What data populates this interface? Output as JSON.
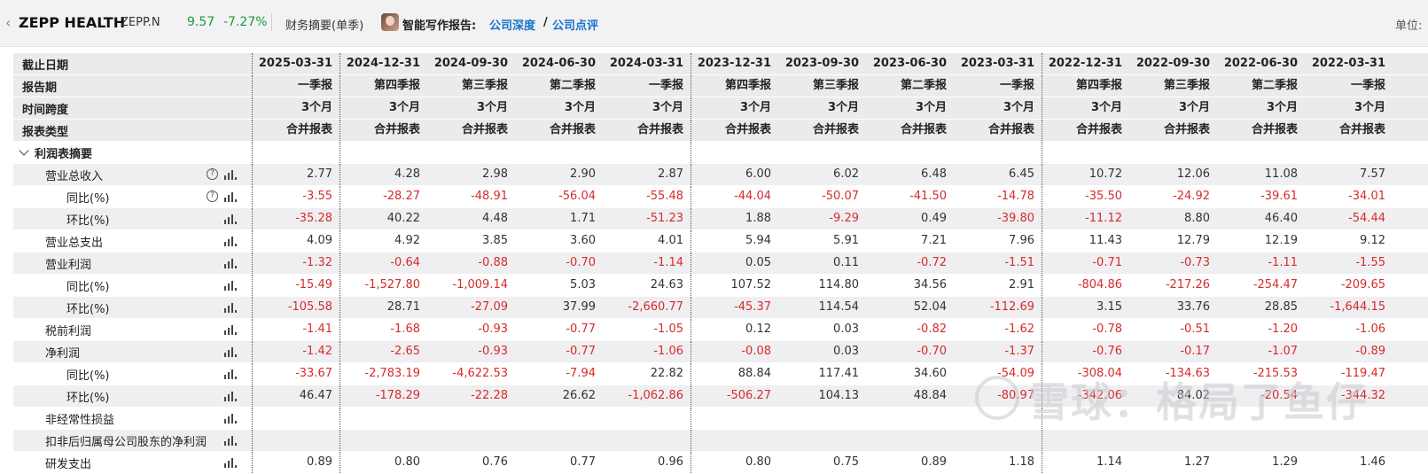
{
  "header": {
    "back_glyph": "‹",
    "company": "ZEPP HEALTH",
    "ticker": "ZEPP.N",
    "price": "9.57",
    "change_pct": "-7.27%",
    "finance_summary": "财务摘要(单季)",
    "ai_report_label": "智能写作报告:",
    "link_deep": "公司深度",
    "slash": "/",
    "link_review": "公司点评",
    "unit_label": "单位:"
  },
  "table": {
    "header_rows": [
      {
        "label": "截止日期",
        "values": [
          "2025-03-31",
          "2024-12-31",
          "2024-09-30",
          "2024-06-30",
          "2024-03-31",
          "2023-12-31",
          "2023-09-30",
          "2023-06-30",
          "2023-03-31",
          "2022-12-31",
          "2022-09-30",
          "2022-06-30",
          "2022-03-31"
        ]
      },
      {
        "label": "报告期",
        "values": [
          "一季报",
          "第四季报",
          "第三季报",
          "第二季报",
          "一季报",
          "第四季报",
          "第三季报",
          "第二季报",
          "一季报",
          "第四季报",
          "第三季报",
          "第二季报",
          "一季报"
        ]
      },
      {
        "label": "时间跨度",
        "values": [
          "3个月",
          "3个月",
          "3个月",
          "3个月",
          "3个月",
          "3个月",
          "3个月",
          "3个月",
          "3个月",
          "3个月",
          "3个月",
          "3个月",
          "3个月"
        ]
      },
      {
        "label": "报表类型",
        "values": [
          "合并报表",
          "合并报表",
          "合并报表",
          "合并报表",
          "合并报表",
          "合并报表",
          "合并报表",
          "合并报表",
          "合并报表",
          "合并报表",
          "合并报表",
          "合并报表",
          "合并报表"
        ]
      }
    ],
    "section_label": "利润表摘要",
    "rows": [
      {
        "label": "营业总收入",
        "level": 1,
        "help": true,
        "values": [
          "2.77",
          "4.28",
          "2.98",
          "2.90",
          "2.87",
          "6.00",
          "6.02",
          "6.48",
          "6.45",
          "10.72",
          "12.06",
          "11.08",
          "7.57"
        ]
      },
      {
        "label": "同比(%)",
        "level": 2,
        "help": true,
        "values": [
          "-3.55",
          "-28.27",
          "-48.91",
          "-56.04",
          "-55.48",
          "-44.04",
          "-50.07",
          "-41.50",
          "-14.78",
          "-35.50",
          "-24.92",
          "-39.61",
          "-34.01"
        ]
      },
      {
        "label": "环比(%)",
        "level": 2,
        "help": false,
        "values": [
          "-35.28",
          "40.22",
          "4.48",
          "1.71",
          "-51.23",
          "1.88",
          "-9.29",
          "0.49",
          "-39.80",
          "-11.12",
          "8.80",
          "46.40",
          "-54.44"
        ]
      },
      {
        "label": "营业总支出",
        "level": 1,
        "help": false,
        "values": [
          "4.09",
          "4.92",
          "3.85",
          "3.60",
          "4.01",
          "5.94",
          "5.91",
          "7.21",
          "7.96",
          "11.43",
          "12.79",
          "12.19",
          "9.12"
        ]
      },
      {
        "label": "营业利润",
        "level": 1,
        "help": false,
        "values": [
          "-1.32",
          "-0.64",
          "-0.88",
          "-0.70",
          "-1.14",
          "0.05",
          "0.11",
          "-0.72",
          "-1.51",
          "-0.71",
          "-0.73",
          "-1.11",
          "-1.55"
        ]
      },
      {
        "label": "同比(%)",
        "level": 2,
        "help": false,
        "values": [
          "-15.49",
          "-1,527.80",
          "-1,009.14",
          "5.03",
          "24.63",
          "107.52",
          "114.80",
          "34.56",
          "2.91",
          "-804.86",
          "-217.26",
          "-254.47",
          "-209.65"
        ]
      },
      {
        "label": "环比(%)",
        "level": 2,
        "help": false,
        "values": [
          "-105.58",
          "28.71",
          "-27.09",
          "37.99",
          "-2,660.77",
          "-45.37",
          "114.54",
          "52.04",
          "-112.69",
          "3.15",
          "33.76",
          "28.85",
          "-1,644.15"
        ]
      },
      {
        "label": "税前利润",
        "level": 1,
        "help": false,
        "values": [
          "-1.41",
          "-1.68",
          "-0.93",
          "-0.77",
          "-1.05",
          "0.12",
          "0.03",
          "-0.82",
          "-1.62",
          "-0.78",
          "-0.51",
          "-1.20",
          "-1.06"
        ]
      },
      {
        "label": "净利润",
        "level": 1,
        "help": false,
        "values": [
          "-1.42",
          "-2.65",
          "-0.93",
          "-0.77",
          "-1.06",
          "-0.08",
          "0.03",
          "-0.70",
          "-1.37",
          "-0.76",
          "-0.17",
          "-1.07",
          "-0.89"
        ]
      },
      {
        "label": "同比(%)",
        "level": 2,
        "help": false,
        "values": [
          "-33.67",
          "-2,783.19",
          "-4,622.53",
          "-7.94",
          "22.82",
          "88.84",
          "117.41",
          "34.60",
          "-54.09",
          "-308.04",
          "-134.63",
          "-215.53",
          "-119.47"
        ]
      },
      {
        "label": "环比(%)",
        "level": 2,
        "help": false,
        "values": [
          "46.47",
          "-178.29",
          "-22.28",
          "26.62",
          "-1,062.86",
          "-506.27",
          "104.13",
          "48.84",
          "-80.97",
          "-342.06",
          "84.02",
          "-20.54",
          "-344.32"
        ]
      },
      {
        "label": "非经常性损益",
        "level": 1,
        "help": false,
        "values": [
          "",
          "",
          "",
          "",
          "",
          "",
          "",
          "",
          "",
          "",
          "",
          "",
          ""
        ]
      },
      {
        "label": "扣非后归属母公司股东的净利润",
        "level": 1,
        "help": false,
        "values": [
          "",
          "",
          "",
          "",
          "",
          "",
          "",
          "",
          "",
          "",
          "",
          "",
          ""
        ]
      },
      {
        "label": "研发支出",
        "level": 1,
        "help": false,
        "values": [
          "0.89",
          "0.80",
          "0.76",
          "0.77",
          "0.96",
          "0.80",
          "0.75",
          "0.89",
          "1.18",
          "1.14",
          "1.27",
          "1.29",
          "1.46"
        ]
      }
    ]
  },
  "watermark": "雪球：格局了鱼仔",
  "colors": {
    "positive_quote": "#1e9a3a",
    "negative_value": "#d62b2b",
    "link": "#1a73c8"
  }
}
